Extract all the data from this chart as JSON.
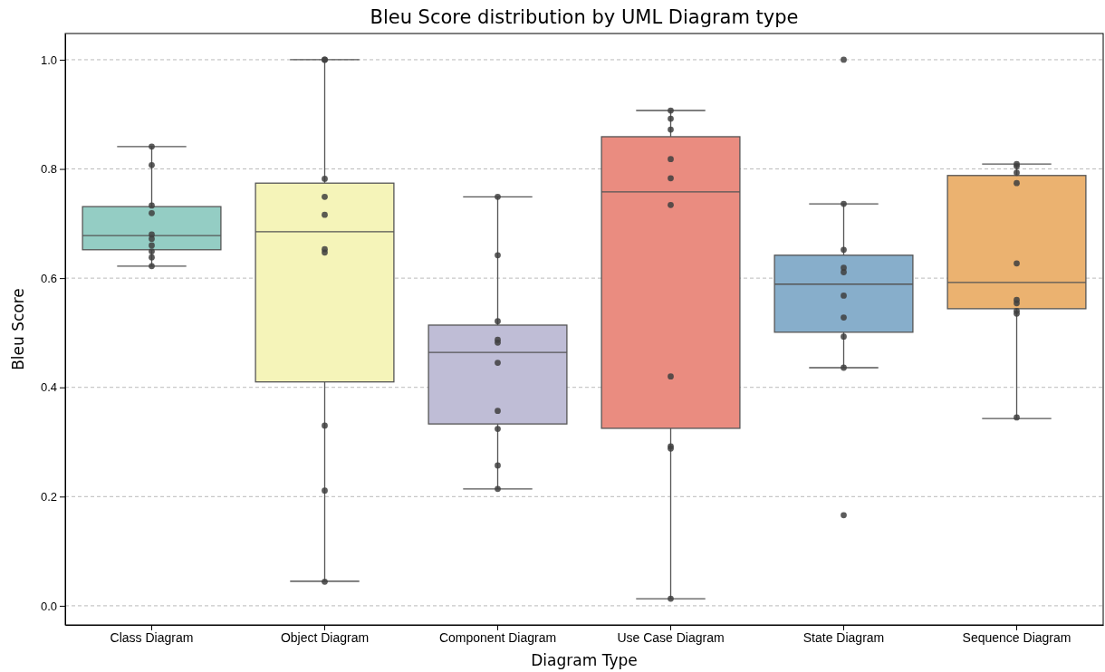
{
  "chart_data": {
    "type": "box",
    "title": "Bleu Score distribution by UML Diagram type",
    "xlabel": "Diagram Type",
    "ylabel": "Bleu Score",
    "categories": [
      "Class Diagram",
      "Object Diagram",
      "Component Diagram",
      "Use Case Diagram",
      "State Diagram",
      "Sequence Diagram"
    ],
    "colors": [
      "#94cdc4",
      "#f5f4b9",
      "#bfbdd6",
      "#ea8c80",
      "#87aecb",
      "#ebb270"
    ],
    "boxes": [
      {
        "low": 0.622,
        "q1": 0.652,
        "median": 0.678,
        "q3": 0.731,
        "high": 0.841
      },
      {
        "low": 0.045,
        "q1": 0.41,
        "median": 0.685,
        "q3": 0.774,
        "high": 1.0
      },
      {
        "low": 0.214,
        "q1": 0.333,
        "median": 0.464,
        "q3": 0.514,
        "high": 0.749
      },
      {
        "low": 0.013,
        "q1": 0.325,
        "median": 0.758,
        "q3": 0.859,
        "high": 0.907
      },
      {
        "low": 0.436,
        "q1": 0.501,
        "median": 0.589,
        "q3": 0.642,
        "high": 0.736
      },
      {
        "low": 0.343,
        "q1": 0.544,
        "median": 0.592,
        "q3": 0.788,
        "high": 0.809
      }
    ],
    "series": [
      {
        "type": "scatter",
        "color": "#404040",
        "marker": "circle",
        "x": [
          "Class Diagram",
          "Class Diagram",
          "Class Diagram",
          "Class Diagram",
          "Class Diagram",
          "Class Diagram",
          "Class Diagram",
          "Class Diagram",
          "Class Diagram",
          "Class Diagram",
          "Object Diagram",
          "Object Diagram",
          "Object Diagram",
          "Object Diagram",
          "Object Diagram",
          "Object Diagram",
          "Object Diagram",
          "Object Diagram",
          "Object Diagram",
          "Object Diagram",
          "Component Diagram",
          "Component Diagram",
          "Component Diagram",
          "Component Diagram",
          "Component Diagram",
          "Component Diagram",
          "Component Diagram",
          "Component Diagram",
          "Component Diagram",
          "Component Diagram",
          "Use Case Diagram",
          "Use Case Diagram",
          "Use Case Diagram",
          "Use Case Diagram",
          "Use Case Diagram",
          "Use Case Diagram",
          "Use Case Diagram",
          "Use Case Diagram",
          "Use Case Diagram",
          "Use Case Diagram",
          "State Diagram",
          "State Diagram",
          "State Diagram",
          "State Diagram",
          "State Diagram",
          "State Diagram",
          "State Diagram",
          "State Diagram",
          "State Diagram",
          "State Diagram",
          "Sequence Diagram",
          "Sequence Diagram",
          "Sequence Diagram",
          "Sequence Diagram",
          "Sequence Diagram",
          "Sequence Diagram",
          "Sequence Diagram",
          "Sequence Diagram",
          "Sequence Diagram",
          "Sequence Diagram"
        ],
        "values": [
          0.841,
          0.807,
          0.733,
          0.719,
          0.68,
          0.672,
          0.66,
          0.649,
          0.638,
          0.622,
          1.0,
          1.0,
          0.782,
          0.749,
          0.716,
          0.653,
          0.647,
          0.33,
          0.211,
          0.044,
          0.749,
          0.642,
          0.521,
          0.487,
          0.482,
          0.445,
          0.357,
          0.324,
          0.257,
          0.214,
          0.907,
          0.892,
          0.872,
          0.818,
          0.783,
          0.734,
          0.42,
          0.292,
          0.288,
          0.013,
          1.0,
          0.736,
          0.652,
          0.619,
          0.611,
          0.568,
          0.528,
          0.493,
          0.436,
          0.166,
          0.809,
          0.805,
          0.793,
          0.774,
          0.627,
          0.56,
          0.554,
          0.54,
          0.535,
          0.345
        ]
      }
    ],
    "ylim": [
      -0.035,
      1.048
    ],
    "yticks": [
      {
        "value": 0,
        "label": "0.0"
      },
      {
        "value": 0.2,
        "label": "0.2"
      },
      {
        "value": 0.4,
        "label": "0.4"
      },
      {
        "value": 0.6,
        "label": "0.6"
      },
      {
        "value": 0.8,
        "label": "0.8"
      },
      {
        "value": 1,
        "label": "1.0"
      }
    ],
    "grid": "y"
  }
}
